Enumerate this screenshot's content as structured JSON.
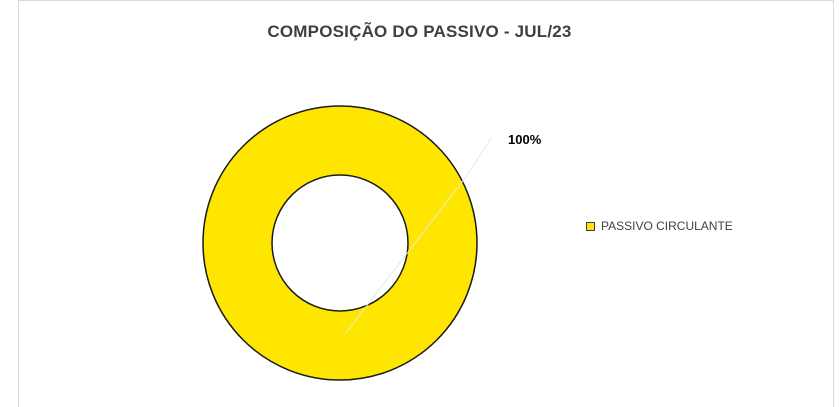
{
  "chart_data": {
    "type": "pie",
    "title": "COMPOSIÇÃO DO PASSIVO - JUL/23",
    "categories": [
      "PASSIVO CIRCULANTE"
    ],
    "values": [
      100
    ],
    "data_labels": [
      "100%"
    ],
    "colors": [
      "#FFE600"
    ],
    "legend_position": "right"
  }
}
